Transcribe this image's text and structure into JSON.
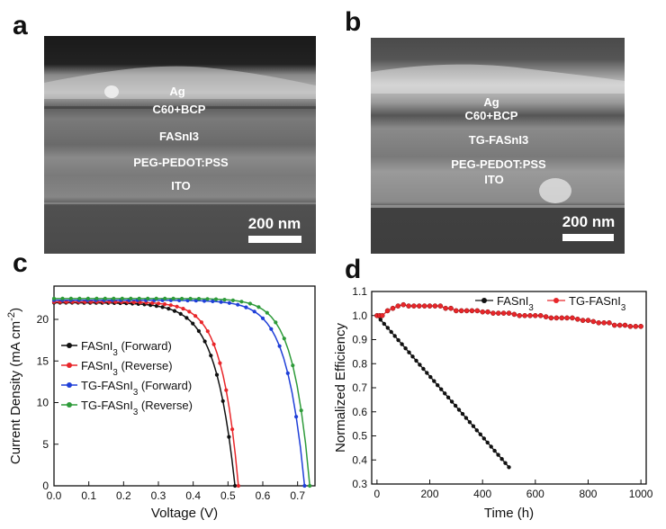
{
  "panels": {
    "a": {
      "letter": "a",
      "layers": [
        "Ag",
        "C60+BCP",
        "FASnI3",
        "PEG-PEDOT:PSS",
        "ITO"
      ],
      "scale_bar": "200 nm"
    },
    "b": {
      "letter": "b",
      "layers": [
        "Ag",
        "C60+BCP",
        "TG-FASnI3",
        "PEG-PEDOT:PSS",
        "ITO"
      ],
      "scale_bar": "200 nm"
    },
    "c": {
      "letter": "c"
    },
    "d": {
      "letter": "d"
    }
  },
  "colors": {
    "black": "#111111",
    "red": "#e8262a",
    "blue": "#1f3fd8",
    "green": "#2e9b3a"
  },
  "chart_data": [
    {
      "panel": "c",
      "type": "line",
      "xlabel": "Voltage (V)",
      "ylabel": "Current Density (mA cm⁻²)",
      "xlim": [
        0,
        0.75
      ],
      "ylim": [
        0,
        24
      ],
      "xticks": [
        "0.0",
        "0.1",
        "0.2",
        "0.3",
        "0.4",
        "0.5",
        "0.6",
        "0.7"
      ],
      "yticks": [
        "0",
        "5",
        "10",
        "15",
        "20"
      ],
      "legend_position": "left-middle",
      "series": [
        {
          "name": "FASnI3 (Forward)",
          "color": "#111111",
          "jsc": 22.0,
          "voc": 0.52,
          "curv": 0.11
        },
        {
          "name": "FASnI3 (Reverse)",
          "color": "#e8262a",
          "jsc": 22.1,
          "voc": 0.53,
          "curv": 0.085
        },
        {
          "name": "TG-FASnI3 (Forward)",
          "color": "#1f3fd8",
          "jsc": 22.3,
          "voc": 0.72,
          "curv": 0.07
        },
        {
          "name": "TG-FASnI3 (Reverse)",
          "color": "#2e9b3a",
          "jsc": 22.5,
          "voc": 0.735,
          "curv": 0.06
        }
      ]
    },
    {
      "panel": "d",
      "type": "line",
      "xlabel": "Time (h)",
      "ylabel": "Normalized Efficiency",
      "xlim": [
        -20,
        1020
      ],
      "ylim": [
        0.3,
        1.1
      ],
      "xticks": [
        "0",
        "200",
        "400",
        "600",
        "800",
        "1000"
      ],
      "yticks": [
        "0.3",
        "0.4",
        "0.5",
        "0.6",
        "0.7",
        "0.8",
        "0.9",
        "1.0",
        "1.1"
      ],
      "legend_position": "top-right",
      "series": [
        {
          "name": "FASnI3",
          "color": "#111111",
          "x": [
            0,
            500
          ],
          "y": [
            1.0,
            0.37
          ],
          "n_points": 38
        },
        {
          "name": "TG-FASnI3",
          "color": "#e8262a",
          "x": [
            0,
            10,
            20,
            40,
            60,
            80,
            100,
            120,
            140,
            160,
            180,
            200,
            220,
            240,
            260,
            280,
            300,
            320,
            340,
            360,
            380,
            400,
            420,
            440,
            460,
            480,
            500,
            520,
            540,
            560,
            580,
            600,
            620,
            640,
            660,
            680,
            700,
            720,
            740,
            760,
            780,
            800,
            820,
            840,
            860,
            880,
            900,
            920,
            940,
            960,
            980,
            1000
          ],
          "y": [
            1.0,
            1.0,
            1.0,
            1.02,
            1.03,
            1.04,
            1.045,
            1.04,
            1.04,
            1.04,
            1.04,
            1.04,
            1.04,
            1.04,
            1.03,
            1.03,
            1.02,
            1.02,
            1.02,
            1.02,
            1.02,
            1.015,
            1.015,
            1.01,
            1.01,
            1.01,
            1.01,
            1.005,
            1.0,
            1.0,
            1.0,
            1.0,
            1.0,
            0.995,
            0.99,
            0.99,
            0.99,
            0.99,
            0.99,
            0.985,
            0.98,
            0.98,
            0.975,
            0.97,
            0.97,
            0.97,
            0.96,
            0.96,
            0.96,
            0.955,
            0.955,
            0.955
          ]
        }
      ]
    }
  ]
}
